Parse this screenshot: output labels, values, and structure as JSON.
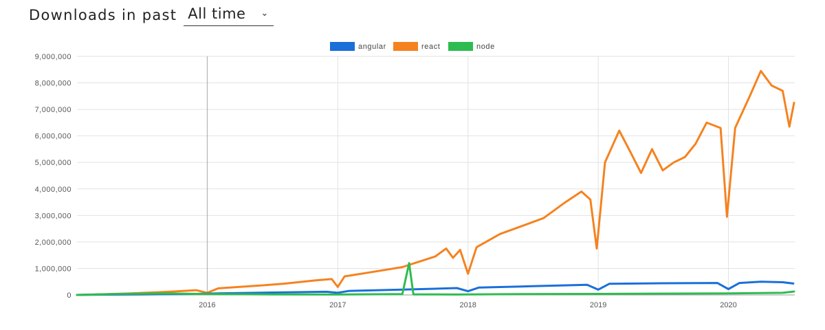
{
  "header": {
    "label": "Downloads in past",
    "period_value": "All time",
    "chevron_icon": "chevron-down-icon"
  },
  "chart_data": {
    "type": "line",
    "title": "",
    "xlabel": "",
    "ylabel": "",
    "ylim": [
      0,
      9000000
    ],
    "xlim": [
      "2015-01-01",
      "2020-07-05"
    ],
    "grid": true,
    "legend_position": "top-center",
    "y_ticks": [
      "0",
      "1,000,000",
      "2,000,000",
      "3,000,000",
      "4,000,000",
      "5,000,000",
      "6,000,000",
      "7,000,000",
      "8,000,000",
      "9,000,000"
    ],
    "x_ticks": [
      {
        "label": "2016",
        "date": "2016-01-01"
      },
      {
        "label": "2017",
        "date": "2017-01-01"
      },
      {
        "label": "2018",
        "date": "2018-01-01"
      },
      {
        "label": "2019",
        "date": "2019-01-01"
      },
      {
        "label": "2020",
        "date": "2020-01-01"
      }
    ],
    "series": [
      {
        "name": "angular",
        "color": "#1a6fd9",
        "points": [
          [
            "2015-01-01",
            0
          ],
          [
            "2015-03-01",
            10000
          ],
          [
            "2015-07-01",
            20000
          ],
          [
            "2015-12-01",
            40000
          ],
          [
            "2016-02-01",
            60000
          ],
          [
            "2016-07-01",
            90000
          ],
          [
            "2016-12-01",
            120000
          ],
          [
            "2017-01-01",
            80000
          ],
          [
            "2017-02-01",
            150000
          ],
          [
            "2017-07-01",
            200000
          ],
          [
            "2017-12-01",
            260000
          ],
          [
            "2018-01-01",
            140000
          ],
          [
            "2018-02-01",
            280000
          ],
          [
            "2018-07-01",
            330000
          ],
          [
            "2018-12-01",
            380000
          ],
          [
            "2019-01-01",
            200000
          ],
          [
            "2019-02-01",
            420000
          ],
          [
            "2019-07-01",
            440000
          ],
          [
            "2019-12-01",
            450000
          ],
          [
            "2020-01-01",
            220000
          ],
          [
            "2020-02-01",
            450000
          ],
          [
            "2020-04-01",
            500000
          ],
          [
            "2020-06-01",
            480000
          ],
          [
            "2020-07-01",
            430000
          ]
        ]
      },
      {
        "name": "react",
        "color": "#f5821f",
        "points": [
          [
            "2015-01-01",
            0
          ],
          [
            "2015-03-01",
            20000
          ],
          [
            "2015-06-01",
            60000
          ],
          [
            "2015-09-01",
            110000
          ],
          [
            "2015-12-01",
            180000
          ],
          [
            "2016-01-01",
            80000
          ],
          [
            "2016-02-01",
            250000
          ],
          [
            "2016-05-01",
            330000
          ],
          [
            "2016-08-01",
            420000
          ],
          [
            "2016-11-01",
            550000
          ],
          [
            "2016-12-15",
            600000
          ],
          [
            "2017-01-01",
            300000
          ],
          [
            "2017-01-20",
            700000
          ],
          [
            "2017-04-01",
            850000
          ],
          [
            "2017-07-01",
            1050000
          ],
          [
            "2017-10-01",
            1450000
          ],
          [
            "2017-11-01",
            1750000
          ],
          [
            "2017-11-20",
            1400000
          ],
          [
            "2017-12-10",
            1700000
          ],
          [
            "2018-01-01",
            800000
          ],
          [
            "2018-01-25",
            1800000
          ],
          [
            "2018-04-01",
            2300000
          ],
          [
            "2018-06-01",
            2600000
          ],
          [
            "2018-08-01",
            2900000
          ],
          [
            "2018-10-01",
            3500000
          ],
          [
            "2018-11-15",
            3900000
          ],
          [
            "2018-12-10",
            3600000
          ],
          [
            "2018-12-28",
            1750000
          ],
          [
            "2019-01-20",
            5000000
          ],
          [
            "2019-03-01",
            6200000
          ],
          [
            "2019-04-01",
            5400000
          ],
          [
            "2019-05-01",
            4600000
          ],
          [
            "2019-06-01",
            5500000
          ],
          [
            "2019-07-01",
            4700000
          ],
          [
            "2019-08-01",
            5000000
          ],
          [
            "2019-09-01",
            5200000
          ],
          [
            "2019-10-01",
            5700000
          ],
          [
            "2019-11-01",
            6500000
          ],
          [
            "2019-12-10",
            6300000
          ],
          [
            "2019-12-28",
            2950000
          ],
          [
            "2020-01-20",
            6300000
          ],
          [
            "2020-03-01",
            7500000
          ],
          [
            "2020-04-01",
            8450000
          ],
          [
            "2020-05-01",
            7900000
          ],
          [
            "2020-06-01",
            7700000
          ],
          [
            "2020-06-20",
            6350000
          ],
          [
            "2020-07-03",
            7250000
          ]
        ]
      },
      {
        "name": "node",
        "color": "#2dbc4f",
        "points": [
          [
            "2015-01-01",
            0
          ],
          [
            "2015-05-01",
            40000
          ],
          [
            "2015-09-01",
            60000
          ],
          [
            "2016-01-01",
            30000
          ],
          [
            "2016-07-01",
            20000
          ],
          [
            "2017-01-01",
            15000
          ],
          [
            "2017-07-01",
            30000
          ],
          [
            "2017-07-20",
            1200000
          ],
          [
            "2017-08-01",
            20000
          ],
          [
            "2017-12-01",
            15000
          ],
          [
            "2018-06-01",
            30000
          ],
          [
            "2019-01-01",
            40000
          ],
          [
            "2019-06-01",
            50000
          ],
          [
            "2020-01-01",
            60000
          ],
          [
            "2020-06-01",
            80000
          ],
          [
            "2020-07-03",
            130000
          ]
        ]
      }
    ]
  }
}
